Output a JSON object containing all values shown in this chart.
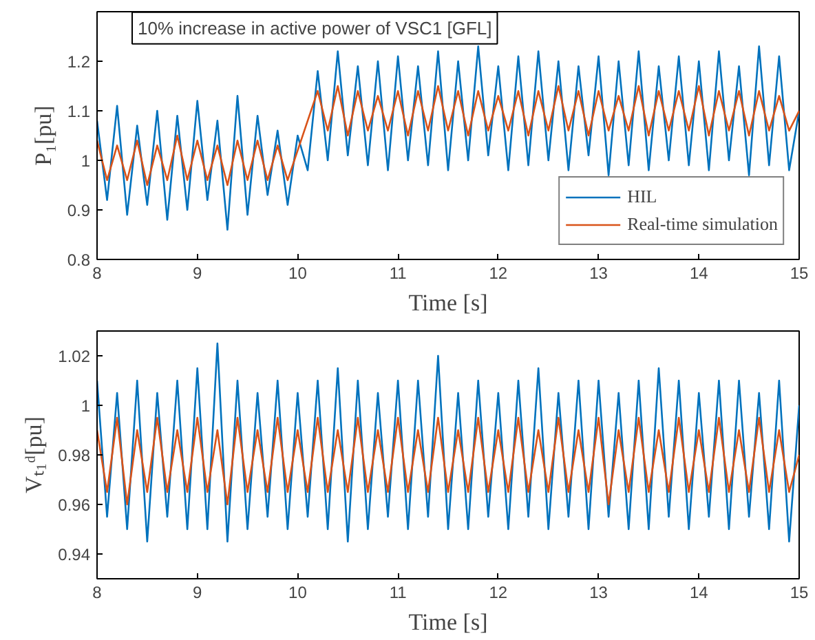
{
  "chart_data": [
    {
      "type": "line",
      "xlabel": "Time [s]",
      "ylabel": "P₁[pu]",
      "annotations": [
        "10% increase in active power of VSC1 [GFL]"
      ],
      "x": [
        8.0,
        8.1,
        8.2,
        8.3,
        8.4,
        8.5,
        8.6,
        8.7,
        8.8,
        8.9,
        9.0,
        9.1,
        9.2,
        9.3,
        9.4,
        9.5,
        9.6,
        9.7,
        9.8,
        9.9,
        10.0,
        10.1,
        10.2,
        10.3,
        10.4,
        10.5,
        10.6,
        10.7,
        10.8,
        10.9,
        11.0,
        11.1,
        11.2,
        11.3,
        11.4,
        11.5,
        11.6,
        11.7,
        11.8,
        11.9,
        12.0,
        12.1,
        12.2,
        12.3,
        12.4,
        12.5,
        12.6,
        12.7,
        12.8,
        12.9,
        13.0,
        13.1,
        13.2,
        13.3,
        13.4,
        13.5,
        13.6,
        13.7,
        13.8,
        13.9,
        14.0,
        14.1,
        14.2,
        14.3,
        14.4,
        14.5,
        14.6,
        14.7,
        14.8,
        14.9,
        15.0
      ],
      "series": [
        {
          "name": "HIL",
          "color": "#0072bd",
          "values": [
            1.08,
            0.92,
            1.11,
            0.89,
            1.07,
            0.91,
            1.1,
            0.88,
            1.09,
            0.9,
            1.12,
            0.92,
            1.08,
            0.86,
            1.13,
            0.89,
            1.09,
            0.93,
            1.06,
            0.91,
            1.05,
            0.98,
            1.18,
            1.0,
            1.22,
            1.01,
            1.19,
            0.99,
            1.2,
            0.98,
            1.21,
            1.0,
            1.19,
            0.99,
            1.22,
            0.98,
            1.2,
            1.0,
            1.23,
            1.01,
            1.19,
            0.98,
            1.21,
            0.99,
            1.22,
            1.0,
            1.2,
            0.98,
            1.19,
            1.01,
            1.21,
            0.97,
            1.2,
            0.99,
            1.22,
            0.98,
            1.19,
            1.0,
            1.21,
            0.99,
            1.2,
            0.98,
            1.22,
            1.0,
            1.19,
            0.97,
            1.23,
            0.99,
            1.21,
            0.98,
            1.1
          ]
        },
        {
          "name": "Real-time simulation",
          "color": "#d95319",
          "values": [
            1.04,
            0.96,
            1.03,
            0.96,
            1.04,
            0.95,
            1.03,
            0.96,
            1.05,
            0.96,
            1.04,
            0.96,
            1.03,
            0.95,
            1.04,
            0.96,
            1.04,
            0.96,
            1.03,
            0.96,
            1.02,
            1.08,
            1.14,
            1.06,
            1.15,
            1.05,
            1.14,
            1.06,
            1.13,
            1.06,
            1.14,
            1.05,
            1.14,
            1.06,
            1.15,
            1.06,
            1.14,
            1.05,
            1.14,
            1.06,
            1.13,
            1.06,
            1.14,
            1.05,
            1.14,
            1.06,
            1.15,
            1.06,
            1.14,
            1.05,
            1.14,
            1.06,
            1.13,
            1.06,
            1.15,
            1.05,
            1.14,
            1.06,
            1.14,
            1.06,
            1.15,
            1.05,
            1.14,
            1.06,
            1.14,
            1.05,
            1.14,
            1.06,
            1.13,
            1.06,
            1.1
          ]
        }
      ],
      "xlim": [
        8,
        15
      ],
      "xticks": [
        8,
        9,
        10,
        11,
        12,
        13,
        14,
        15
      ],
      "ylim": [
        0.8,
        1.3
      ],
      "yticks": [
        0.8,
        0.9,
        1,
        1.1,
        1.2
      ],
      "grid": false,
      "legend": "bottom right"
    },
    {
      "type": "line",
      "xlabel": "Time [s]",
      "ylabel": "Vₜ₁ᵈ[pu]",
      "x": [
        8.0,
        8.1,
        8.2,
        8.3,
        8.4,
        8.5,
        8.6,
        8.7,
        8.8,
        8.9,
        9.0,
        9.1,
        9.2,
        9.3,
        9.4,
        9.5,
        9.6,
        9.7,
        9.8,
        9.9,
        10.0,
        10.1,
        10.2,
        10.3,
        10.4,
        10.5,
        10.6,
        10.7,
        10.8,
        10.9,
        11.0,
        11.1,
        11.2,
        11.3,
        11.4,
        11.5,
        11.6,
        11.7,
        11.8,
        11.9,
        12.0,
        12.1,
        12.2,
        12.3,
        12.4,
        12.5,
        12.6,
        12.7,
        12.8,
        12.9,
        13.0,
        13.1,
        13.2,
        13.3,
        13.4,
        13.5,
        13.6,
        13.7,
        13.8,
        13.9,
        14.0,
        14.1,
        14.2,
        14.3,
        14.4,
        14.5,
        14.6,
        14.7,
        14.8,
        14.9,
        15.0
      ],
      "series": [
        {
          "color": "#0072bd",
          "values": [
            1.01,
            0.955,
            1.005,
            0.95,
            1.01,
            0.945,
            1.005,
            0.955,
            1.01,
            0.95,
            1.015,
            0.95,
            1.025,
            0.945,
            1.01,
            0.95,
            1.005,
            0.955,
            1.01,
            0.95,
            1.005,
            0.955,
            1.01,
            0.95,
            1.015,
            0.945,
            1.01,
            0.95,
            1.005,
            0.955,
            1.01,
            0.95,
            1.01,
            0.955,
            1.02,
            0.95,
            1.005,
            0.95,
            1.01,
            0.955,
            1.005,
            0.95,
            1.01,
            0.955,
            1.015,
            0.95,
            1.005,
            0.955,
            1.01,
            0.95,
            1.01,
            0.955,
            1.005,
            0.95,
            1.01,
            0.95,
            1.015,
            0.955,
            1.01,
            0.95,
            1.005,
            0.955,
            1.01,
            0.95,
            1.01,
            0.955,
            1.005,
            0.95,
            1.01,
            0.945,
            1.0
          ]
        },
        {
          "color": "#d95319",
          "values": [
            0.99,
            0.965,
            0.995,
            0.96,
            0.99,
            0.965,
            0.995,
            0.965,
            0.99,
            0.965,
            0.995,
            0.965,
            0.99,
            0.96,
            0.995,
            0.965,
            0.99,
            0.965,
            0.995,
            0.965,
            0.99,
            0.965,
            0.995,
            0.965,
            0.99,
            0.965,
            0.995,
            0.965,
            0.99,
            0.965,
            0.995,
            0.965,
            0.99,
            0.965,
            0.995,
            0.965,
            0.99,
            0.965,
            0.995,
            0.965,
            0.99,
            0.965,
            0.995,
            0.965,
            0.99,
            0.965,
            0.995,
            0.965,
            0.99,
            0.965,
            0.995,
            0.96,
            0.99,
            0.965,
            0.995,
            0.965,
            0.99,
            0.965,
            0.995,
            0.965,
            0.99,
            0.965,
            0.995,
            0.965,
            0.99,
            0.965,
            0.995,
            0.965,
            0.99,
            0.965,
            0.98
          ]
        }
      ],
      "xlim": [
        8,
        15
      ],
      "xticks": [
        8,
        9,
        10,
        11,
        12,
        13,
        14,
        15
      ],
      "ylim": [
        0.93,
        1.03
      ],
      "yticks": [
        0.94,
        0.96,
        0.98,
        1,
        1.02
      ],
      "grid": false
    }
  ]
}
